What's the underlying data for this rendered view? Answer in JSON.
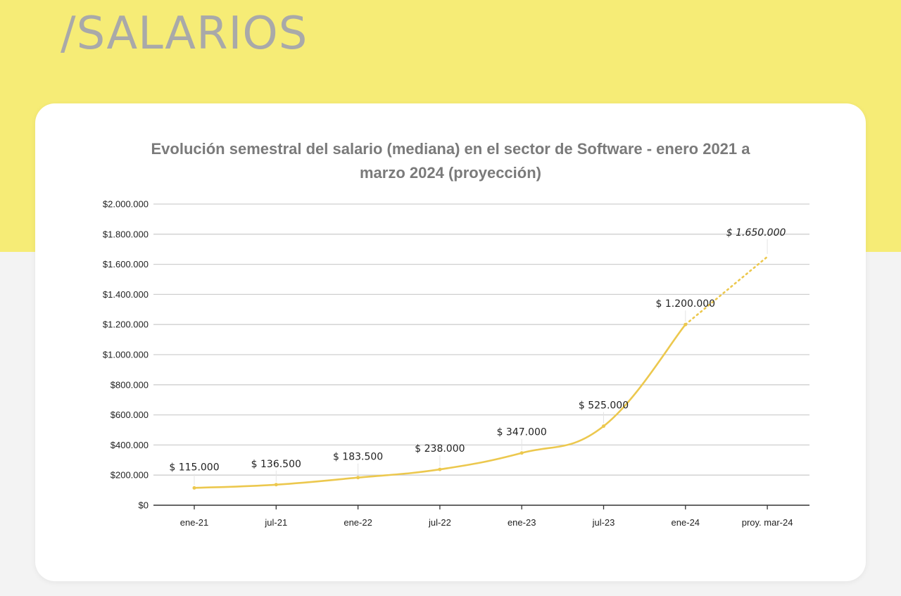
{
  "section_title": "/SALARIOS",
  "chart_data": {
    "type": "line",
    "title_lines": [
      "Evolución semestral del salario (mediana) en el sector de Software - enero 2021 a",
      "marzo 2024 (proyección)"
    ],
    "categories": [
      "ene-21",
      "jul-21",
      "ene-22",
      "jul-22",
      "ene-23",
      "jul-23",
      "ene-24",
      "proy. mar-24"
    ],
    "values": [
      115000,
      136500,
      183500,
      238000,
      347000,
      525000,
      1200000,
      1650000
    ],
    "data_labels": [
      "$ 115.000",
      "$ 136.500",
      "$ 183.500",
      "$ 238.000",
      "$ 347.000",
      "$ 525.000",
      "$ 1.200.000",
      "$ 1.650.000"
    ],
    "projected_from_index": 6,
    "ylim": [
      0,
      2000000
    ],
    "yticks": [
      0,
      200000,
      400000,
      600000,
      800000,
      1000000,
      1200000,
      1400000,
      1600000,
      1800000,
      2000000
    ],
    "ytick_labels": [
      "$0",
      "$200.000",
      "$400.000",
      "$600.000",
      "$800.000",
      "$1.000.000",
      "$1.200.000",
      "$1.400.000",
      "$1.600.000",
      "$1.800.000",
      "$2.000.000"
    ],
    "grid": true,
    "line_color": "#ecc84e",
    "grid_color": "#cfcfcf"
  },
  "colors": {
    "band": "#f6ec76",
    "background": "#f3f3f3",
    "title_text": "#a9a9a9"
  }
}
